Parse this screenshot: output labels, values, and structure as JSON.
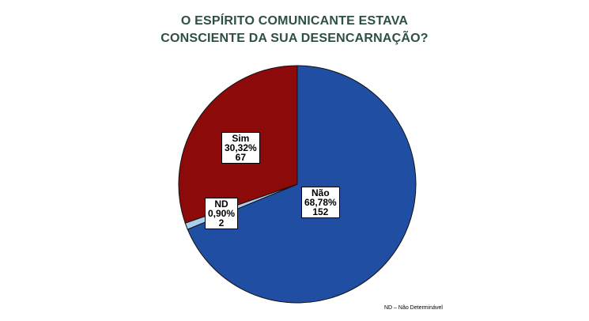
{
  "chart_data": {
    "type": "pie",
    "title_lines": [
      "O ESPÍRITO COMUNICANTE ESTAVA",
      "CONSCIENTE DA SUA DESENCARNAÇÃO?"
    ],
    "slices": [
      {
        "name": "Não",
        "percent_text": "68,78%",
        "count": 152,
        "value": 68.78,
        "color": "#1f4ea3"
      },
      {
        "name": "ND",
        "percent_text": "0,90%",
        "count": 2,
        "value": 0.9,
        "color": "#a9cdea"
      },
      {
        "name": "Sim",
        "percent_text": "30,32%",
        "count": 67,
        "value": 30.32,
        "color": "#8d0a0a"
      }
    ],
    "start_angle_deg": 0,
    "direction": "clockwise",
    "footnote": "ND – Não Determinável"
  }
}
